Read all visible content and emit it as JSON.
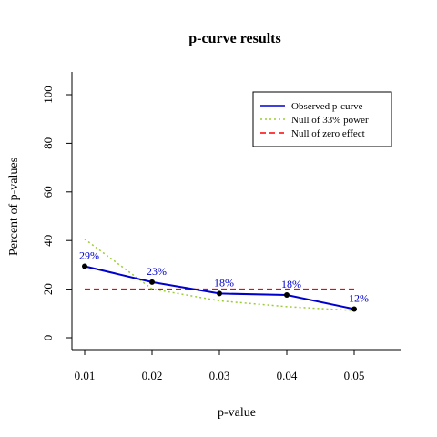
{
  "chart_data": {
    "type": "line",
    "title": "p-curve results",
    "xlabel": "p-value",
    "ylabel": "Percent of p-values",
    "x": [
      0.01,
      0.02,
      0.03,
      0.04,
      0.05
    ],
    "x_tick_labels": [
      "0.01",
      "0.02",
      "0.03",
      "0.04",
      "0.05"
    ],
    "y_ticks": [
      0,
      20,
      40,
      60,
      80,
      100
    ],
    "y_tick_labels": [
      "0",
      "20",
      "40",
      "60",
      "80",
      "100"
    ],
    "xlim": [
      0.01,
      0.0566
    ],
    "ylim": [
      0,
      100
    ],
    "grid": false,
    "legend_position": "top-right",
    "series": [
      {
        "name": "Observed p-curve",
        "values": [
          29.4,
          22.9,
          18.2,
          17.6,
          11.8
        ],
        "point_labels": [
          "29%",
          "23%",
          "18%",
          "18%",
          "12%"
        ],
        "color": "#0000CD",
        "style": "solid",
        "markers": true
      },
      {
        "name": "Null of 33% power",
        "values": [
          40.6,
          20.1,
          15.2,
          12.8,
          11.2
        ],
        "color": "#9ACD32",
        "style": "dotted",
        "markers": false
      },
      {
        "name": "Null of zero effect",
        "values": [
          20,
          20,
          20,
          20,
          20
        ],
        "color": "#FF0000",
        "style": "dashed",
        "markers": false
      }
    ]
  }
}
